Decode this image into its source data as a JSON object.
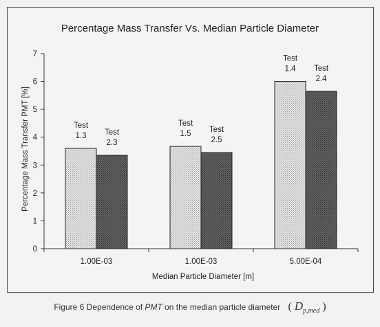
{
  "chart_data": {
    "type": "bar",
    "title": "Percentage Mass Transfer Vs. Median Particle Diameter",
    "xlabel": "Median Particle Diameter [m]",
    "ylabel": "Percentage Mass Transfer PMT [%]",
    "ylim": [
      0,
      7
    ],
    "yticks": [
      "0",
      "1",
      "2",
      "3",
      "4",
      "5",
      "6",
      "7"
    ],
    "grid": false,
    "categories": [
      "1.00E-03",
      "1.00E-03",
      "5.00E-04"
    ],
    "groups": [
      {
        "category": "1.00E-03",
        "bars": [
          {
            "label_line1": "Test",
            "label_line2": "1.3",
            "value": 3.6
          },
          {
            "label_line1": "Test",
            "label_line2": "2.3",
            "value": 3.35
          }
        ]
      },
      {
        "category": "1.00E-03",
        "bars": [
          {
            "label_line1": "Test",
            "label_line2": "1.5",
            "value": 3.67
          },
          {
            "label_line1": "Test",
            "label_line2": "2.5",
            "value": 3.45
          }
        ]
      },
      {
        "category": "5.00E-04",
        "bars": [
          {
            "label_line1": "Test",
            "label_line2": "1.4",
            "value": 6.0
          },
          {
            "label_line1": "Test",
            "label_line2": "2.4",
            "value": 5.65
          }
        ]
      }
    ],
    "colors": {
      "bar_light": "#cfcfcf",
      "bar_dark": "#5a5a5a",
      "axis": "#333333"
    }
  },
  "caption": {
    "prefix": "Figure 6 Dependence of ",
    "emphasis": "PMT",
    "suffix": " on the median particle diameter",
    "open_paren": "(",
    "symbol": "D",
    "subscript": "p,med",
    "close_paren": ")"
  }
}
